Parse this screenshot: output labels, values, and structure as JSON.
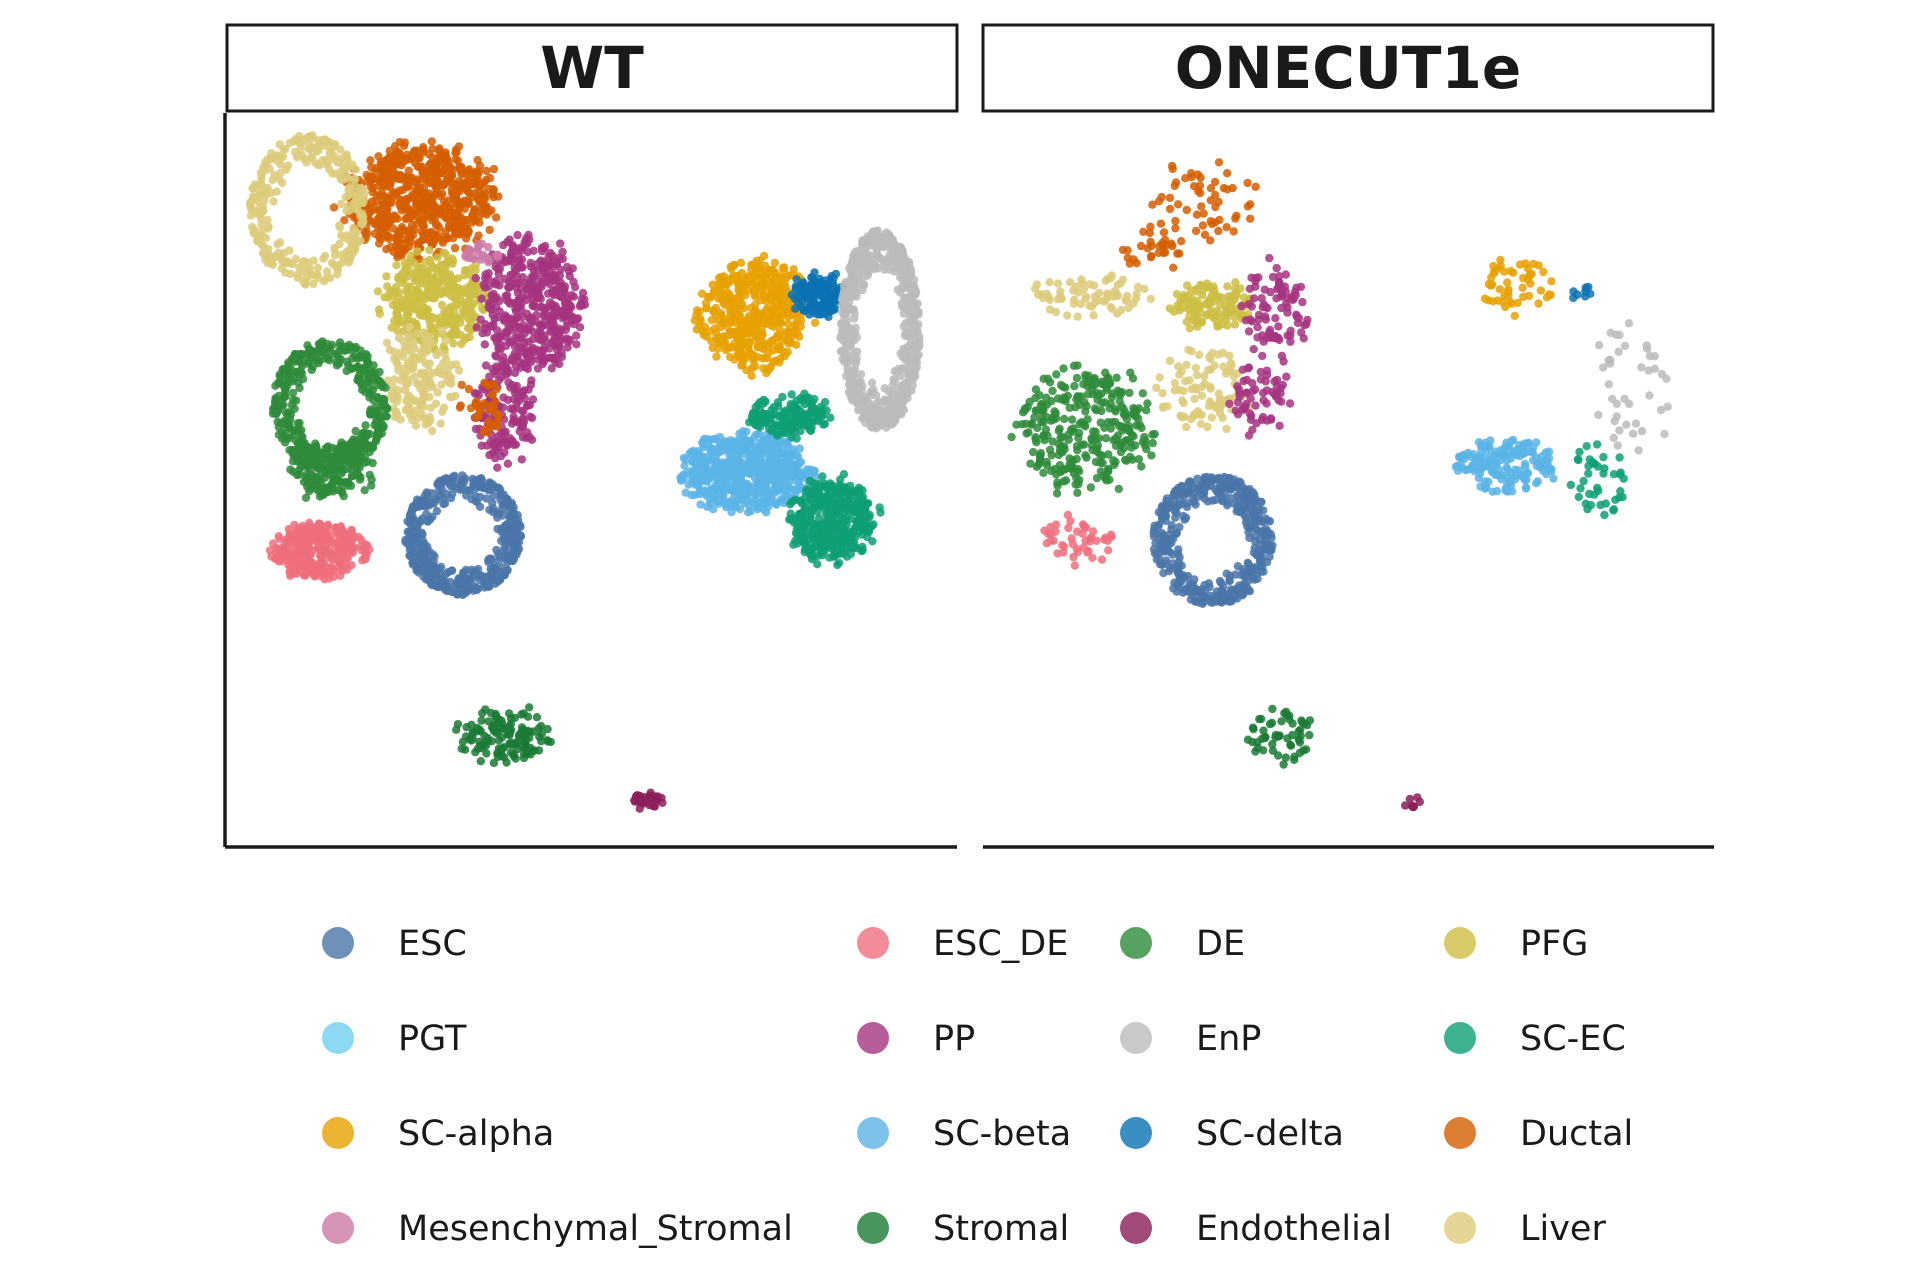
{
  "chart_data": {
    "type": "scatter",
    "panels": [
      {
        "id": "wt",
        "label": "WT"
      },
      {
        "id": "onecut",
        "label": "ONECUT1e"
      }
    ],
    "legend": [
      {
        "label": "ESC",
        "color": "#4A76A8"
      },
      {
        "label": "ESC_DE",
        "color": "#EF6F7E"
      },
      {
        "label": "DE",
        "color": "#2E8B3A"
      },
      {
        "label": "PFG",
        "color": "#CDBE44"
      },
      {
        "label": "PGT",
        "color": "#6FD0F0"
      },
      {
        "label": "PP",
        "color": "#A63480"
      },
      {
        "label": "EnP",
        "color": "#BBBBBB"
      },
      {
        "label": "SC-EC",
        "color": "#0E9F76"
      },
      {
        "label": "SC-alpha",
        "color": "#E6A100"
      },
      {
        "label": "SC-beta",
        "color": "#5AB4E6"
      },
      {
        "label": "SC-delta",
        "color": "#0A72B2"
      },
      {
        "label": "Ductal",
        "color": "#D55E00"
      },
      {
        "label": "Mesenchymal_Stromal",
        "color": "#CC79A7"
      },
      {
        "label": "Stromal",
        "color": "#1B7A35"
      },
      {
        "label": "Endothelial",
        "color": "#8B1E5A"
      },
      {
        "label": "Liver",
        "color": "#DCCB7A"
      }
    ],
    "clusters": {
      "wt": [
        {
          "type": "Ductal",
          "cx": 420,
          "cy": 200,
          "rx": 80,
          "ry": 58,
          "n": 650
        },
        {
          "type": "Liver",
          "cx": 308,
          "cy": 210,
          "rx": 58,
          "ry": 75,
          "n": 300,
          "ring": true
        },
        {
          "type": "PFG",
          "cx": 435,
          "cy": 300,
          "rx": 55,
          "ry": 48,
          "n": 350
        },
        {
          "type": "Liver",
          "cx": 420,
          "cy": 380,
          "rx": 40,
          "ry": 55,
          "n": 160
        },
        {
          "type": "PP",
          "cx": 530,
          "cy": 305,
          "rx": 55,
          "ry": 72,
          "n": 450
        },
        {
          "type": "PP",
          "cx": 505,
          "cy": 410,
          "rx": 30,
          "ry": 55,
          "n": 150
        },
        {
          "type": "Ductal",
          "cx": 480,
          "cy": 405,
          "rx": 25,
          "ry": 30,
          "n": 40
        },
        {
          "type": "DE",
          "cx": 330,
          "cy": 405,
          "rx": 58,
          "ry": 65,
          "n": 400,
          "ring": true
        },
        {
          "type": "DE",
          "cx": 330,
          "cy": 470,
          "rx": 45,
          "ry": 30,
          "n": 150
        },
        {
          "type": "ESC_DE",
          "cx": 318,
          "cy": 550,
          "rx": 48,
          "ry": 30,
          "n": 320
        },
        {
          "type": "ESC",
          "cx": 463,
          "cy": 535,
          "rx": 58,
          "ry": 60,
          "n": 450,
          "ring": true
        },
        {
          "type": "Mesenchymal_Stromal",
          "cx": 480,
          "cy": 255,
          "rx": 20,
          "ry": 12,
          "n": 25
        },
        {
          "type": "SC-alpha",
          "cx": 755,
          "cy": 315,
          "rx": 58,
          "ry": 58,
          "n": 450
        },
        {
          "type": "SC-delta",
          "cx": 820,
          "cy": 295,
          "rx": 30,
          "ry": 22,
          "n": 150
        },
        {
          "type": "EnP",
          "cx": 880,
          "cy": 330,
          "rx": 40,
          "ry": 100,
          "n": 650,
          "ring": true
        },
        {
          "type": "SC-beta",
          "cx": 745,
          "cy": 472,
          "rx": 68,
          "ry": 40,
          "n": 600
        },
        {
          "type": "SC-EC",
          "cx": 790,
          "cy": 415,
          "rx": 45,
          "ry": 22,
          "n": 150
        },
        {
          "type": "SC-EC",
          "cx": 832,
          "cy": 520,
          "rx": 45,
          "ry": 45,
          "n": 400
        },
        {
          "type": "Stromal",
          "cx": 505,
          "cy": 735,
          "rx": 50,
          "ry": 30,
          "n": 130
        },
        {
          "type": "Endothelial",
          "cx": 648,
          "cy": 800,
          "rx": 16,
          "ry": 10,
          "n": 30
        }
      ],
      "onecut": [
        {
          "type": "Ductal",
          "cx": 1210,
          "cy": 200,
          "rx": 55,
          "ry": 42,
          "n": 55
        },
        {
          "type": "Ductal",
          "cx": 1150,
          "cy": 250,
          "rx": 35,
          "ry": 25,
          "n": 30
        },
        {
          "type": "Liver",
          "cx": 1090,
          "cy": 295,
          "rx": 60,
          "ry": 22,
          "n": 70
        },
        {
          "type": "PFG",
          "cx": 1215,
          "cy": 305,
          "rx": 45,
          "ry": 25,
          "n": 130
        },
        {
          "type": "Liver",
          "cx": 1200,
          "cy": 390,
          "rx": 50,
          "ry": 45,
          "n": 90
        },
        {
          "type": "PP",
          "cx": 1275,
          "cy": 310,
          "rx": 35,
          "ry": 50,
          "n": 90
        },
        {
          "type": "PP",
          "cx": 1260,
          "cy": 400,
          "rx": 35,
          "ry": 35,
          "n": 60
        },
        {
          "type": "DE",
          "cx": 1085,
          "cy": 430,
          "rx": 70,
          "ry": 65,
          "n": 300
        },
        {
          "type": "ESC_DE",
          "cx": 1075,
          "cy": 540,
          "rx": 40,
          "ry": 25,
          "n": 45
        },
        {
          "type": "ESC",
          "cx": 1213,
          "cy": 540,
          "rx": 60,
          "ry": 65,
          "n": 450,
          "ring": true
        },
        {
          "type": "SC-alpha",
          "cx": 1518,
          "cy": 285,
          "rx": 38,
          "ry": 30,
          "n": 50
        },
        {
          "type": "SC-delta",
          "cx": 1580,
          "cy": 293,
          "rx": 16,
          "ry": 8,
          "n": 8
        },
        {
          "type": "EnP",
          "cx": 1630,
          "cy": 390,
          "rx": 38,
          "ry": 80,
          "n": 40
        },
        {
          "type": "SC-beta",
          "cx": 1505,
          "cy": 465,
          "rx": 55,
          "ry": 30,
          "n": 160
        },
        {
          "type": "SC-EC",
          "cx": 1600,
          "cy": 480,
          "rx": 30,
          "ry": 45,
          "n": 40
        },
        {
          "type": "Stromal",
          "cx": 1280,
          "cy": 735,
          "rx": 35,
          "ry": 28,
          "n": 55
        },
        {
          "type": "Endothelial",
          "cx": 1410,
          "cy": 800,
          "rx": 12,
          "ry": 10,
          "n": 8
        }
      ]
    }
  }
}
